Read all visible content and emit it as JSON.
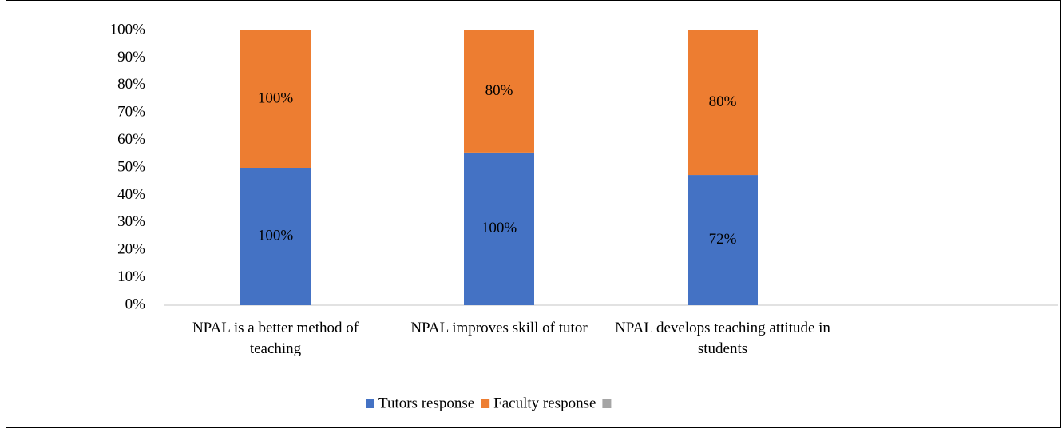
{
  "chart_data": {
    "type": "bar",
    "stacking": "percent",
    "categories": [
      "NPAL is a better method of teaching",
      "NPAL improves skill of tutor",
      "NPAL develops teaching attitude in students",
      null
    ],
    "series": [
      {
        "name": "Tutors response",
        "color": "#4472c4",
        "values": [
          100,
          100,
          72,
          null
        ],
        "value_labels": [
          "100%",
          "100%",
          "72%",
          null
        ]
      },
      {
        "name": "Faculty response",
        "color": "#ed7d31",
        "values": [
          100,
          80,
          80,
          null
        ],
        "value_labels": [
          "100%",
          "80%",
          "80%",
          null
        ]
      },
      {
        "name": null,
        "color": "#a5a5a5",
        "values": [
          null,
          null,
          null,
          null
        ]
      }
    ],
    "ylim": [
      0,
      100
    ],
    "yticks": [
      {
        "value": 0,
        "label": "0%"
      },
      {
        "value": 10,
        "label": "10%"
      },
      {
        "value": 20,
        "label": "20%"
      },
      {
        "value": 30,
        "label": "30%"
      },
      {
        "value": 40,
        "label": "40%"
      },
      {
        "value": 50,
        "label": "50%"
      },
      {
        "value": 60,
        "label": "60%"
      },
      {
        "value": 70,
        "label": "70%"
      },
      {
        "value": 80,
        "label": "80%"
      },
      {
        "value": 90,
        "label": "90%"
      },
      {
        "value": 100,
        "label": "100%"
      }
    ],
    "grid": false,
    "legend": "bottom"
  }
}
